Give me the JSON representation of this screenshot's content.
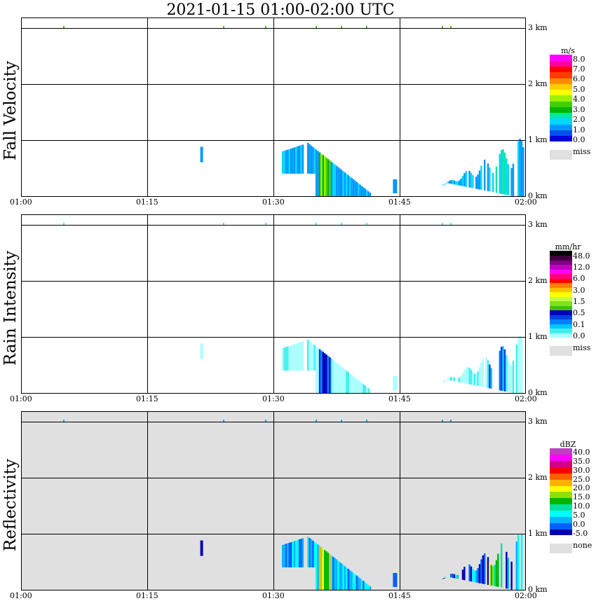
{
  "title": "2021-01-15   01:00-02:00 UTC",
  "x_ticks": [
    "01:00",
    "01:15",
    "01:30",
    "01:45",
    "02:00"
  ],
  "height_ticks": [
    "3 km",
    "2 km",
    "1 km",
    "0 km"
  ],
  "panels": [
    {
      "name": "fall-velocity",
      "ylabel": "Fall Velocity",
      "background": "#ffffff",
      "colorbar": {
        "unit": "m/s",
        "colors": [
          "#0000d8",
          "#0050f0",
          "#0098ff",
          "#00d8ff",
          "#00e8a0",
          "#00b400",
          "#40d000",
          "#a0f000",
          "#ffff00",
          "#ffcc00",
          "#ff8c00",
          "#ff3c00",
          "#ff0000",
          "#ff00a0",
          "#ff00ff"
        ],
        "labels": [
          "0.0",
          "1.0",
          "2.0",
          "3.0",
          "4.0",
          "5.0",
          "6.0",
          "7.0",
          "8.0"
        ],
        "miss_label": "miss"
      }
    },
    {
      "name": "rain-intensity",
      "ylabel": "Rain Intensity",
      "background": "#ffffff",
      "colorbar": {
        "unit": "mm/hr",
        "colors": [
          "#aaffff",
          "#44eeee",
          "#00c8ff",
          "#0080ff",
          "#0040e0",
          "#0000c0",
          "#40c000",
          "#80e020",
          "#c0ff40",
          "#ffff00",
          "#ffc000",
          "#ff8000",
          "#ff0000",
          "#ff0080",
          "#ff00ff",
          "#c000c0",
          "#800080",
          "#400040",
          "#000000"
        ],
        "labels": [
          "0.0",
          "0.1",
          "0.5",
          "1.5",
          "3.0",
          "6.0",
          "12.0",
          "48.0"
        ],
        "miss_label": "miss"
      }
    },
    {
      "name": "reflectivity",
      "ylabel": "Reflectivity",
      "background": "#e0e0e0",
      "colorbar": {
        "unit": "dBZ",
        "colors": [
          "#0000b0",
          "#0060ff",
          "#00b4ff",
          "#00ffff",
          "#00e0a0",
          "#00b400",
          "#90e000",
          "#ffff00",
          "#ffb000",
          "#ff6000",
          "#ff0000",
          "#d00080",
          "#ff00ff",
          "#c040c0"
        ],
        "labels": [
          "-5.0",
          "0.0",
          "5.0",
          "10.0",
          "15.0",
          "20.0",
          "25.0",
          "30.0",
          "35.0",
          "40.0"
        ],
        "miss_label": "none"
      }
    }
  ],
  "chart_data": {
    "type": "heatmap",
    "title": "2021-01-15   01:00-02:00 UTC",
    "x_axis": {
      "range": [
        "01:00",
        "02:00"
      ],
      "ticks": [
        "01:00",
        "01:15",
        "01:30",
        "01:45",
        "02:00"
      ]
    },
    "y_axis": {
      "unit": "km",
      "range": [
        0,
        3.5
      ],
      "ticks": [
        0,
        1,
        2,
        3
      ]
    },
    "grid": true,
    "series": [
      {
        "name": "Fall Velocity",
        "unit": "m/s",
        "features": [
          {
            "time_start": "01:31",
            "time_end": "01:39",
            "height_top_km": 0.9,
            "height_bottom_km": 0,
            "value_range": [
              1.0,
              5.0
            ]
          },
          {
            "time_start": "01:50",
            "time_end": "02:00",
            "height_top_km": 1.1,
            "height_bottom_km": 0,
            "value_range": [
              1.0,
              3.0
            ]
          },
          {
            "time_start": "01:22",
            "time_end": "01:23",
            "height_top_km": 0.9,
            "height_bottom_km": 0.6,
            "value_range": [
              1.0,
              2.0
            ]
          }
        ]
      },
      {
        "name": "Rain Intensity",
        "unit": "mm/hr",
        "features": [
          {
            "time_start": "01:31",
            "time_end": "01:41",
            "height_top_km": 0.9,
            "height_bottom_km": 0,
            "value_range": [
              0.1,
              1.5
            ]
          },
          {
            "time_start": "01:50",
            "time_end": "02:00",
            "height_top_km": 1.1,
            "height_bottom_km": 0,
            "value_range": [
              0.1,
              1.5
            ]
          }
        ]
      },
      {
        "name": "Reflectivity",
        "unit": "dBZ",
        "features": [
          {
            "time_start": "01:31",
            "time_end": "01:39",
            "height_top_km": 1.0,
            "height_bottom_km": 0,
            "value_range": [
              0.0,
              25.0
            ]
          },
          {
            "time_start": "01:50",
            "time_end": "02:00",
            "height_top_km": 1.1,
            "height_bottom_km": 0,
            "value_range": [
              0.0,
              20.0
            ]
          }
        ]
      }
    ]
  }
}
